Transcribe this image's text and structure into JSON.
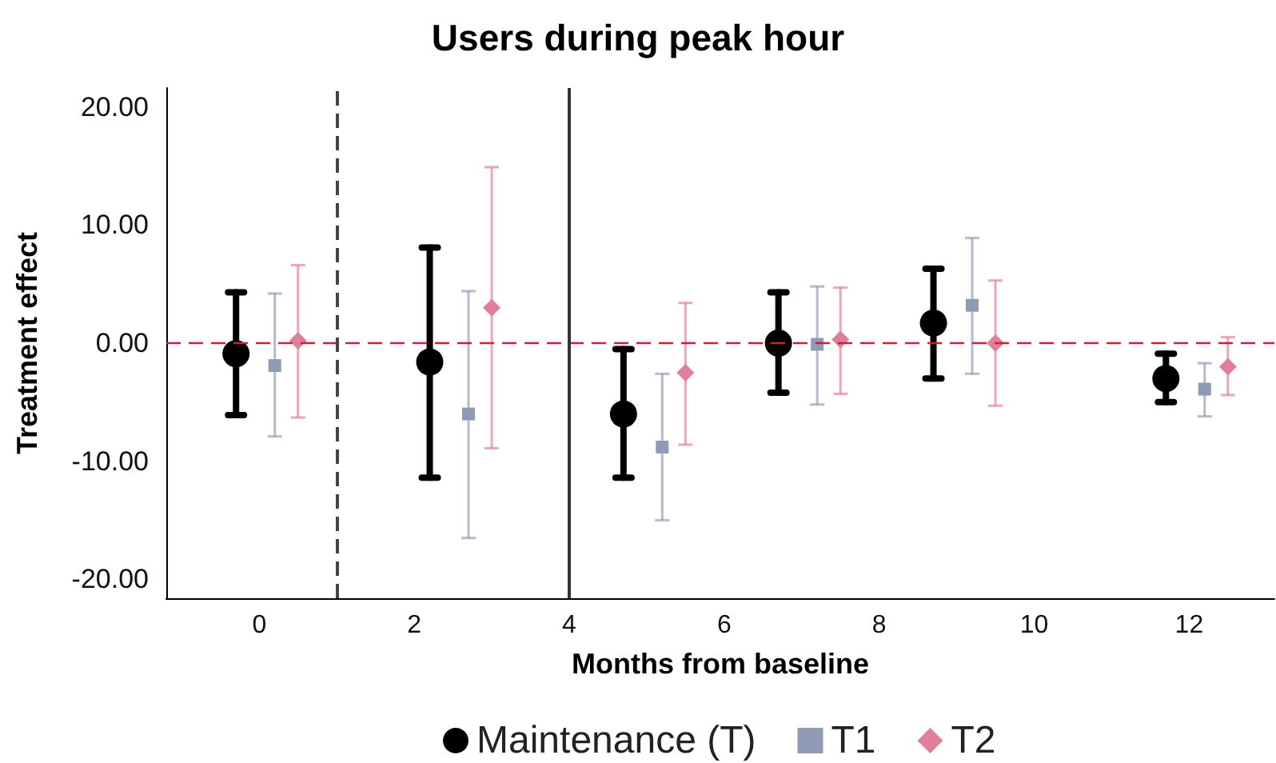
{
  "chart_data": {
    "type": "scatter",
    "title": "Users during peak hour",
    "xlabel": "Months from baseline",
    "ylabel": "Treatment effect",
    "xlim": [
      -1.2,
      13.1
    ],
    "ylim": [
      -21.6,
      21.6
    ],
    "xticks": [
      0,
      2,
      4,
      6,
      8,
      10,
      12
    ],
    "yticks": [
      {
        "value": -20,
        "label": "-20.00"
      },
      {
        "value": -10,
        "label": "-10.00"
      },
      {
        "value": 0,
        "label": "0.00"
      },
      {
        "value": 10,
        "label": "10.00"
      },
      {
        "value": 20,
        "label": "20.00"
      }
    ],
    "series": [
      {
        "name": "Maintenance (T)",
        "color": "#000000",
        "marker": "circle",
        "x": [
          -0.3,
          2.2,
          4.7,
          6.7,
          8.7,
          11.7
        ],
        "values": [
          -0.9,
          -1.6,
          -6.0,
          0.0,
          1.7,
          -3.0
        ],
        "errors": [
          [
            -6.1,
            4.3
          ],
          [
            -11.4,
            8.1
          ],
          [
            -11.4,
            -0.5
          ],
          [
            -4.2,
            4.3
          ],
          [
            -3.0,
            6.3
          ],
          [
            -5.0,
            -0.9
          ]
        ]
      },
      {
        "name": "T1",
        "color": "#8f9bb5",
        "marker": "square",
        "x": [
          0.2,
          2.7,
          5.2,
          7.2,
          9.2,
          12.2
        ],
        "values": [
          -1.9,
          -6.0,
          -8.8,
          -0.1,
          3.2,
          -3.9
        ],
        "errors": [
          [
            -7.9,
            4.2
          ],
          [
            -16.5,
            4.4
          ],
          [
            -15.0,
            -2.6
          ],
          [
            -5.2,
            4.8
          ],
          [
            -2.6,
            8.9
          ],
          [
            -6.2,
            -1.7
          ]
        ]
      },
      {
        "name": "T2",
        "color": "#df7f99",
        "marker": "diamond",
        "x": [
          0.5,
          3.0,
          5.5,
          7.5,
          9.5,
          12.5
        ],
        "values": [
          0.2,
          3.0,
          -2.5,
          0.3,
          0.0,
          -2.0
        ],
        "errors": [
          [
            -6.3,
            6.6
          ],
          [
            -8.9,
            14.9
          ],
          [
            -8.6,
            3.4
          ],
          [
            -4.3,
            4.7
          ],
          [
            -5.3,
            5.3
          ],
          [
            -4.4,
            0.5
          ]
        ]
      }
    ],
    "ref_lines": [
      {
        "axis": "y",
        "value": 0,
        "color": "#cc1f3d",
        "line_style": "dashed"
      },
      {
        "axis": "x",
        "value": 1,
        "color": "#444444",
        "line_style": "dashed"
      },
      {
        "axis": "x",
        "value": 4,
        "color": "#333333",
        "line_style": "solid"
      }
    ],
    "legend": "bottom"
  }
}
